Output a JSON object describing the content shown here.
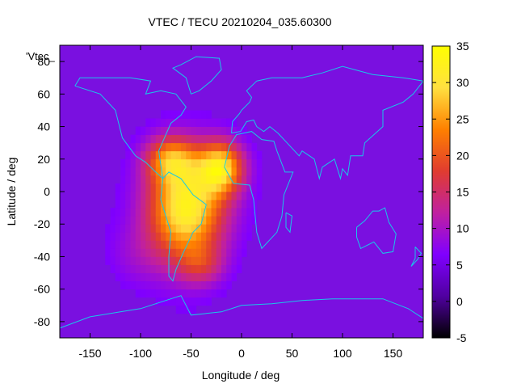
{
  "chart_data": {
    "type": "heatmap",
    "title": "VTEC / TECU 20210204_035.60300",
    "xlabel": "Longitude / deg",
    "ylabel": "Latitude / deg",
    "xlim": [
      -180,
      180
    ],
    "ylim": [
      -90,
      90
    ],
    "x_ticks": [
      -150,
      -100,
      -50,
      0,
      50,
      100,
      150
    ],
    "y_ticks": [
      -80,
      -60,
      -40,
      -20,
      0,
      20,
      40,
      60,
      80
    ],
    "legend_label": "'Vtec_",
    "colorbar": {
      "range": [
        -5,
        35
      ],
      "ticks": [
        -5,
        0,
        5,
        10,
        15,
        20,
        25,
        30,
        35
      ],
      "colormap": [
        "#000000",
        "#5000a0",
        "#8000ff",
        "#c020a0",
        "#e03c30",
        "#ff8000",
        "#ffe040",
        "#ffff00"
      ]
    },
    "background_value": 5,
    "features": [
      {
        "name": "south-american-anomaly",
        "lon": -55,
        "lat": -10,
        "peak": 33,
        "spread_lon": 38,
        "spread_lat": 32
      },
      {
        "name": "atlantic-crest",
        "lon": -20,
        "lat": 15,
        "peak": 27,
        "spread_lon": 22,
        "spread_lat": 16
      },
      {
        "name": "north-arc",
        "lon": -70,
        "lat": 20,
        "peak": 20,
        "spread_lon": 25,
        "spread_lat": 14
      },
      {
        "name": "southwest-tail",
        "lon": -105,
        "lat": -40,
        "peak": 8,
        "spread_lon": 30,
        "spread_lat": 20
      },
      {
        "name": "southern-plume",
        "lon": -40,
        "lat": -45,
        "peak": 12,
        "spread_lon": 22,
        "spread_lat": 12
      }
    ],
    "coastlines": [
      {
        "name": "north-america",
        "points": [
          [
            -165,
            65
          ],
          [
            -140,
            60
          ],
          [
            -125,
            50
          ],
          [
            -118,
            33
          ],
          [
            -105,
            22
          ],
          [
            -95,
            18
          ],
          [
            -85,
            12
          ],
          [
            -78,
            8
          ],
          [
            -82,
            25
          ],
          [
            -75,
            35
          ],
          [
            -70,
            42
          ],
          [
            -60,
            47
          ],
          [
            -55,
            52
          ],
          [
            -65,
            60
          ],
          [
            -80,
            62
          ],
          [
            -95,
            60
          ],
          [
            -90,
            68
          ],
          [
            -110,
            70
          ],
          [
            -130,
            70
          ],
          [
            -160,
            70
          ],
          [
            -165,
            65
          ]
        ]
      },
      {
        "name": "south-america",
        "points": [
          [
            -78,
            8
          ],
          [
            -80,
            -5
          ],
          [
            -75,
            -15
          ],
          [
            -70,
            -25
          ],
          [
            -72,
            -40
          ],
          [
            -72,
            -52
          ],
          [
            -68,
            -55
          ],
          [
            -65,
            -48
          ],
          [
            -58,
            -38
          ],
          [
            -48,
            -25
          ],
          [
            -40,
            -20
          ],
          [
            -35,
            -8
          ],
          [
            -48,
            -2
          ],
          [
            -60,
            8
          ],
          [
            -72,
            12
          ],
          [
            -78,
            8
          ]
        ]
      },
      {
        "name": "greenland",
        "points": [
          [
            -50,
            60
          ],
          [
            -42,
            62
          ],
          [
            -30,
            68
          ],
          [
            -20,
            75
          ],
          [
            -22,
            82
          ],
          [
            -45,
            83
          ],
          [
            -60,
            78
          ],
          [
            -68,
            76
          ],
          [
            -55,
            70
          ],
          [
            -50,
            60
          ]
        ]
      },
      {
        "name": "africa",
        "points": [
          [
            -17,
            15
          ],
          [
            -12,
            28
          ],
          [
            -5,
            35
          ],
          [
            10,
            37
          ],
          [
            20,
            32
          ],
          [
            32,
            31
          ],
          [
            35,
            25
          ],
          [
            43,
            12
          ],
          [
            51,
            12
          ],
          [
            42,
            -2
          ],
          [
            40,
            -15
          ],
          [
            35,
            -25
          ],
          [
            20,
            -35
          ],
          [
            15,
            -25
          ],
          [
            12,
            -5
          ],
          [
            8,
            4
          ],
          [
            -8,
            5
          ],
          [
            -17,
            15
          ]
        ]
      },
      {
        "name": "eurasia",
        "points": [
          [
            -10,
            36
          ],
          [
            -9,
            43
          ],
          [
            -2,
            48
          ],
          [
            0,
            50
          ],
          [
            8,
            55
          ],
          [
            10,
            58
          ],
          [
            5,
            62
          ],
          [
            15,
            68
          ],
          [
            30,
            70
          ],
          [
            60,
            70
          ],
          [
            80,
            73
          ],
          [
            100,
            77
          ],
          [
            130,
            72
          ],
          [
            160,
            70
          ],
          [
            180,
            68
          ],
          [
            170,
            60
          ],
          [
            160,
            55
          ],
          [
            140,
            50
          ],
          [
            140,
            40
          ],
          [
            122,
            30
          ],
          [
            120,
            22
          ],
          [
            108,
            22
          ],
          [
            105,
            10
          ],
          [
            100,
            14
          ],
          [
            98,
            8
          ],
          [
            92,
            20
          ],
          [
            80,
            15
          ],
          [
            77,
            8
          ],
          [
            72,
            20
          ],
          [
            60,
            25
          ],
          [
            57,
            22
          ],
          [
            45,
            30
          ],
          [
            36,
            36
          ],
          [
            28,
            40
          ],
          [
            22,
            37
          ],
          [
            15,
            40
          ],
          [
            12,
            44
          ],
          [
            5,
            43
          ],
          [
            -1,
            37
          ],
          [
            -10,
            36
          ]
        ]
      },
      {
        "name": "australia",
        "points": [
          [
            114,
            -22
          ],
          [
            122,
            -18
          ],
          [
            130,
            -12
          ],
          [
            136,
            -12
          ],
          [
            142,
            -10
          ],
          [
            146,
            -19
          ],
          [
            153,
            -26
          ],
          [
            150,
            -37
          ],
          [
            140,
            -38
          ],
          [
            131,
            -31
          ],
          [
            118,
            -35
          ],
          [
            114,
            -28
          ],
          [
            114,
            -22
          ]
        ]
      },
      {
        "name": "antarctica-coast",
        "points": [
          [
            -180,
            -84
          ],
          [
            -150,
            -77
          ],
          [
            -120,
            -74
          ],
          [
            -100,
            -72
          ],
          [
            -70,
            -66
          ],
          [
            -60,
            -64
          ],
          [
            -50,
            -76
          ],
          [
            -20,
            -74
          ],
          [
            0,
            -70
          ],
          [
            30,
            -69
          ],
          [
            60,
            -67
          ],
          [
            90,
            -66
          ],
          [
            120,
            -66
          ],
          [
            140,
            -66
          ],
          [
            165,
            -72
          ],
          [
            180,
            -78
          ]
        ]
      },
      {
        "name": "new-zealand",
        "points": [
          [
            172,
            -34
          ],
          [
            178,
            -38
          ],
          [
            174,
            -42
          ],
          [
            168,
            -46
          ],
          [
            172,
            -41
          ],
          [
            172,
            -34
          ]
        ]
      },
      {
        "name": "madagascar",
        "points": [
          [
            44,
            -13
          ],
          [
            50,
            -15
          ],
          [
            48,
            -25
          ],
          [
            44,
            -22
          ],
          [
            44,
            -13
          ]
        ]
      }
    ]
  }
}
